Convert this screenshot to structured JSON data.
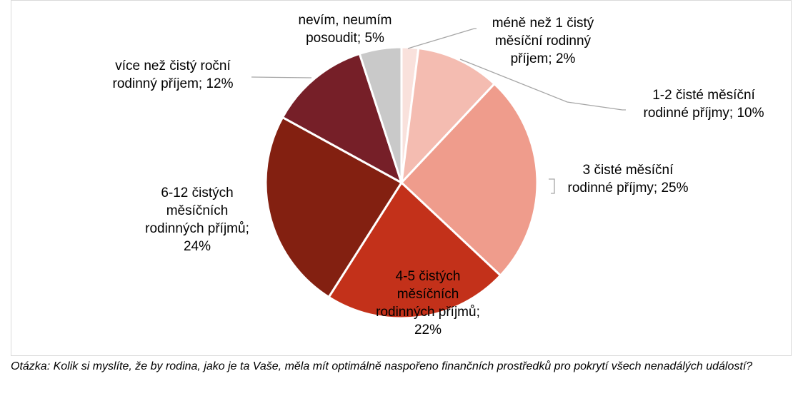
{
  "chart_data": {
    "type": "pie",
    "slices": [
      {
        "label_lines": [
          "méně než 1 čistý",
          "měsíční rodinný",
          "příjem; 2%"
        ],
        "value": 2,
        "color": "#f9e1dc"
      },
      {
        "label_lines": [
          "1-2 čisté měsíční",
          "rodinné příjmy; 10%"
        ],
        "value": 10,
        "color": "#f4bcb1"
      },
      {
        "label_lines": [
          "3 čisté měsíční",
          "rodinné příjmy; 25%"
        ],
        "value": 25,
        "color": "#ef9c8c"
      },
      {
        "label_lines": [
          "4-5 čistých",
          "měsíčních",
          "rodinných příjmů;",
          "22%"
        ],
        "value": 22,
        "color": "#c3311a"
      },
      {
        "label_lines": [
          "6-12 čistých",
          "měsíčních",
          "rodinných příjmů;",
          "24%"
        ],
        "value": 24,
        "color": "#832011"
      },
      {
        "label_lines": [
          "více než čistý roční",
          "rodinný příjem; 12%"
        ],
        "value": 12,
        "color": "#761f28"
      },
      {
        "label_lines": [
          "nevím, neumím",
          "posoudit; 5%"
        ],
        "value": 5,
        "color": "#c9c9c9"
      }
    ]
  },
  "question_text": "Otázka: Kolik si myslíte, že by rodina, jako je ta Vaše, měla mít optimálně naspořeno finančních prostředků pro pokrytí všech nenadálých událostí?"
}
